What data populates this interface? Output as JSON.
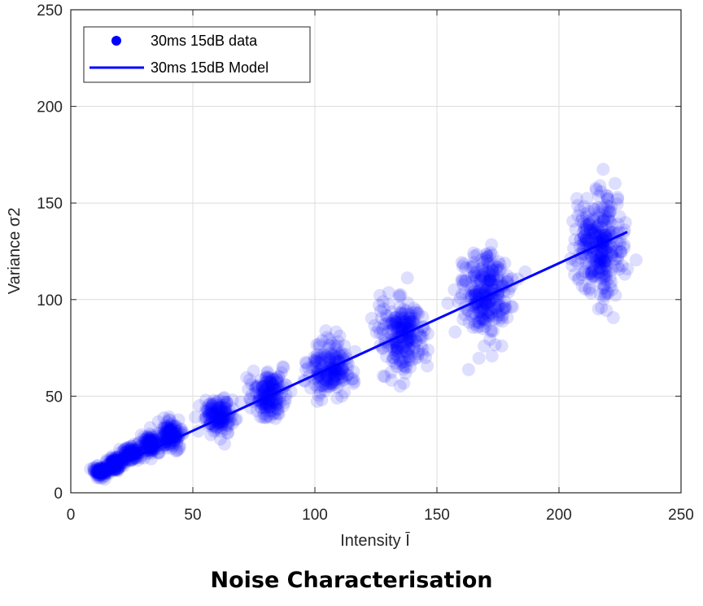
{
  "caption": "Noise Characterisation",
  "chart_data": {
    "type": "scatter",
    "xlabel": "Intensity Ī",
    "ylabel": "Variance σ2",
    "xlim": [
      0,
      250
    ],
    "ylim": [
      0,
      250
    ],
    "xticks": [
      0,
      50,
      100,
      150,
      200,
      250
    ],
    "yticks": [
      0,
      50,
      100,
      150,
      200,
      250
    ],
    "grid": true,
    "legend_position": "top-left",
    "colors": {
      "series": "#0000ff",
      "axis": "#262626",
      "grid": "#dcdcdc"
    },
    "series": [
      {
        "name": "30ms 15dB data",
        "kind": "scatter",
        "clusters": [
          {
            "x": 12,
            "x_spread": 3,
            "y": 11,
            "y_spread": 2
          },
          {
            "x": 18,
            "x_spread": 3,
            "y": 15,
            "y_spread": 3
          },
          {
            "x": 25,
            "x_spread": 4,
            "y": 20,
            "y_spread": 3
          },
          {
            "x": 33,
            "x_spread": 4,
            "y": 25,
            "y_spread": 4
          },
          {
            "x": 41,
            "x_spread": 4,
            "y": 30,
            "y_spread": 5
          },
          {
            "x": 60,
            "x_spread": 6,
            "y": 40,
            "y_spread": 6
          },
          {
            "x": 81,
            "x_spread": 7,
            "y": 51,
            "y_spread": 8
          },
          {
            "x": 106,
            "x_spread": 8,
            "y": 64,
            "y_spread": 9
          },
          {
            "x": 136,
            "x_spread": 8,
            "y": 82,
            "y_spread": 12
          },
          {
            "x": 170,
            "x_spread": 9,
            "y": 102,
            "y_spread": 15
          },
          {
            "x": 216,
            "x_spread": 9,
            "y": 128,
            "y_spread": 18
          }
        ]
      },
      {
        "name": "30ms 15dB Model",
        "kind": "line",
        "x": [
          10,
          228
        ],
        "y": [
          9,
          135
        ]
      }
    ]
  }
}
